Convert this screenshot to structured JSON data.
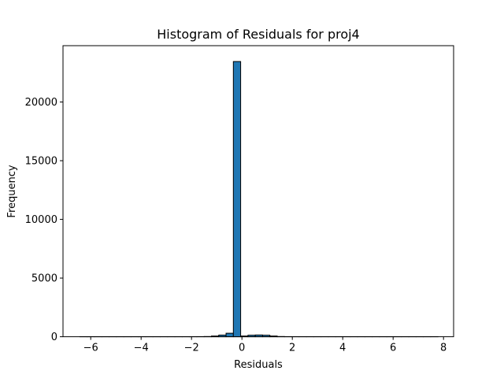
{
  "chart_data": {
    "type": "bar",
    "title": "Histogram of Residuals for proj4",
    "xlabel": "Residuals",
    "ylabel": "Frequency",
    "xlim": [
      -7.1,
      8.4
    ],
    "ylim": [
      0,
      24800
    ],
    "xticks": [
      -6,
      -4,
      -2,
      0,
      2,
      4,
      6,
      8
    ],
    "yticks": [
      0,
      5000,
      10000,
      15000,
      20000
    ],
    "bar_color": "#1f77b4",
    "edge_color": "#000000",
    "bins": [
      {
        "x0": -6.43,
        "x1": -6.14,
        "count": 5
      },
      {
        "x0": -6.14,
        "x1": -5.85,
        "count": 5
      },
      {
        "x0": -5.85,
        "x1": -5.56,
        "count": 5
      },
      {
        "x0": -5.56,
        "x1": -5.27,
        "count": 5
      },
      {
        "x0": -5.27,
        "x1": -4.98,
        "count": 5
      },
      {
        "x0": -4.98,
        "x1": -4.69,
        "count": 5
      },
      {
        "x0": -4.69,
        "x1": -4.4,
        "count": 5
      },
      {
        "x0": -4.4,
        "x1": -4.11,
        "count": 5
      },
      {
        "x0": -4.11,
        "x1": -3.82,
        "count": 5
      },
      {
        "x0": -3.82,
        "x1": -3.53,
        "count": 5
      },
      {
        "x0": -3.53,
        "x1": -3.24,
        "count": 5
      },
      {
        "x0": -3.24,
        "x1": -2.95,
        "count": 5
      },
      {
        "x0": -2.95,
        "x1": -2.66,
        "count": 5
      },
      {
        "x0": -2.66,
        "x1": -2.37,
        "count": 5
      },
      {
        "x0": -2.37,
        "x1": -2.08,
        "count": 5
      },
      {
        "x0": -2.08,
        "x1": -1.79,
        "count": 5
      },
      {
        "x0": -1.79,
        "x1": -1.5,
        "count": 10
      },
      {
        "x0": -1.5,
        "x1": -1.21,
        "count": 20
      },
      {
        "x0": -1.21,
        "x1": -0.92,
        "count": 60
      },
      {
        "x0": -0.92,
        "x1": -0.63,
        "count": 140
      },
      {
        "x0": -0.63,
        "x1": -0.34,
        "count": 300
      },
      {
        "x0": -0.34,
        "x1": -0.05,
        "count": 23450
      },
      {
        "x0": -0.05,
        "x1": 0.24,
        "count": 60
      },
      {
        "x0": 0.24,
        "x1": 0.53,
        "count": 130
      },
      {
        "x0": 0.53,
        "x1": 0.82,
        "count": 150
      },
      {
        "x0": 0.82,
        "x1": 1.11,
        "count": 130
      },
      {
        "x0": 1.11,
        "x1": 1.4,
        "count": 60
      },
      {
        "x0": 1.4,
        "x1": 1.69,
        "count": 20
      },
      {
        "x0": 1.69,
        "x1": 1.98,
        "count": 8
      },
      {
        "x0": 1.98,
        "x1": 2.27,
        "count": 5
      },
      {
        "x0": 2.27,
        "x1": 2.56,
        "count": 5
      },
      {
        "x0": 2.56,
        "x1": 2.85,
        "count": 5
      },
      {
        "x0": 2.85,
        "x1": 3.14,
        "count": 5
      },
      {
        "x0": 3.14,
        "x1": 3.43,
        "count": 5
      },
      {
        "x0": 3.43,
        "x1": 3.72,
        "count": 5
      },
      {
        "x0": 3.72,
        "x1": 4.01,
        "count": 5
      },
      {
        "x0": 4.01,
        "x1": 4.3,
        "count": 5
      },
      {
        "x0": 4.3,
        "x1": 4.59,
        "count": 5
      },
      {
        "x0": 4.59,
        "x1": 4.88,
        "count": 5
      },
      {
        "x0": 4.88,
        "x1": 5.17,
        "count": 5
      },
      {
        "x0": 5.17,
        "x1": 5.46,
        "count": 5
      },
      {
        "x0": 5.46,
        "x1": 5.75,
        "count": 5
      },
      {
        "x0": 5.75,
        "x1": 6.04,
        "count": 5
      },
      {
        "x0": 6.04,
        "x1": 6.33,
        "count": 5
      },
      {
        "x0": 6.33,
        "x1": 6.62,
        "count": 5
      },
      {
        "x0": 6.62,
        "x1": 6.91,
        "count": 5
      },
      {
        "x0": 6.91,
        "x1": 7.2,
        "count": 5
      },
      {
        "x0": 7.2,
        "x1": 7.49,
        "count": 5
      },
      {
        "x0": 7.49,
        "x1": 7.78,
        "count": 5
      }
    ]
  }
}
